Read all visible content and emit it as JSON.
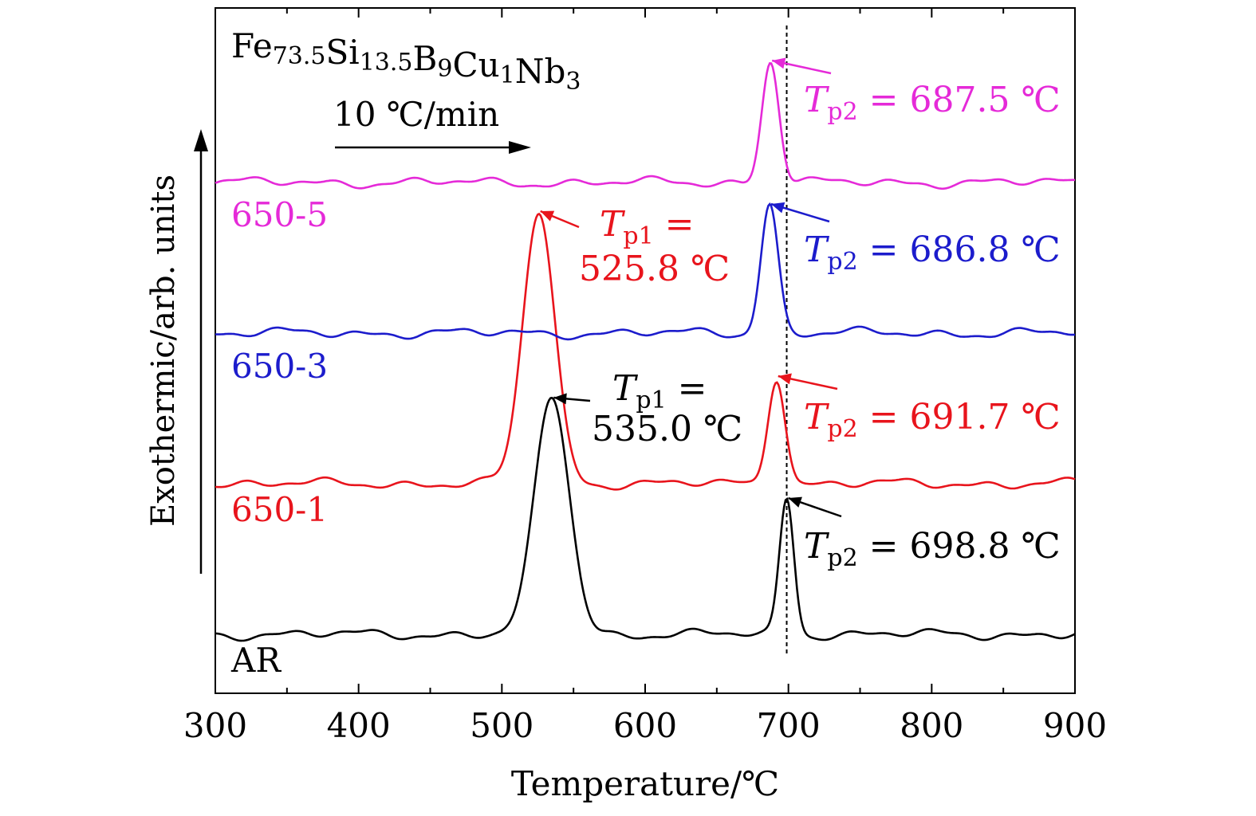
{
  "chart_data": {
    "type": "line",
    "title": "",
    "composition": {
      "base": "Fe",
      "parts": [
        {
          "el": "Fe",
          "sub": "73.5"
        },
        {
          "el": "Si",
          "sub": "13.5"
        },
        {
          "el": "B",
          "sub": "9"
        },
        {
          "el": "Cu",
          "sub": "1"
        },
        {
          "el": "Nb",
          "sub": "3"
        }
      ]
    },
    "xlabel": "Temperature/℃",
    "ylabel": "Exothermic/arb. units",
    "xlim": [
      300,
      900
    ],
    "xticks": [
      300,
      400,
      500,
      600,
      700,
      800,
      900
    ],
    "xtick_labels": [
      "300",
      "400",
      "500",
      "600",
      "700",
      "800",
      "900"
    ],
    "yticks_shown": false,
    "grid": false,
    "heating_rate_label": "10 ℃/min",
    "reference_line_x": 698.8,
    "series": [
      {
        "name": "AR",
        "color": "#000000",
        "baseline": 0.0,
        "peaks": [
          {
            "label_var": "T",
            "label_sub": "p1",
            "x": 535.0,
            "height": 0.33,
            "width": 12,
            "text_line1": "T",
            "sub": "p1",
            "eq": " =",
            "text_line2": "535.0 ℃"
          },
          {
            "label_var": "T",
            "label_sub": "p2",
            "x": 698.8,
            "height": 0.19,
            "width": 5,
            "text": "698.8 ℃"
          }
        ]
      },
      {
        "name": "650-1",
        "color": "#e8141c",
        "baseline": 0.21,
        "peaks": [
          {
            "x": 525.8,
            "height": 0.38,
            "width": 11,
            "text_line1": "T",
            "sub": "p1",
            "eq": " =",
            "text_line2": "525.8 ℃"
          },
          {
            "x": 691.7,
            "height": 0.15,
            "width": 6,
            "text": "691.7 ℃"
          }
        ]
      },
      {
        "name": "650-3",
        "color": "#1c1ccc",
        "baseline": 0.42,
        "peaks": [
          {
            "x": 686.8,
            "height": 0.18,
            "width": 6,
            "text": "686.8 ℃"
          }
        ]
      },
      {
        "name": "650-5",
        "color": "#e52ad8",
        "baseline": 0.63,
        "peaks": [
          {
            "x": 687.5,
            "height": 0.17,
            "width": 6,
            "text": "687.5 ℃"
          }
        ]
      }
    ],
    "peak_label_eq": " = "
  }
}
